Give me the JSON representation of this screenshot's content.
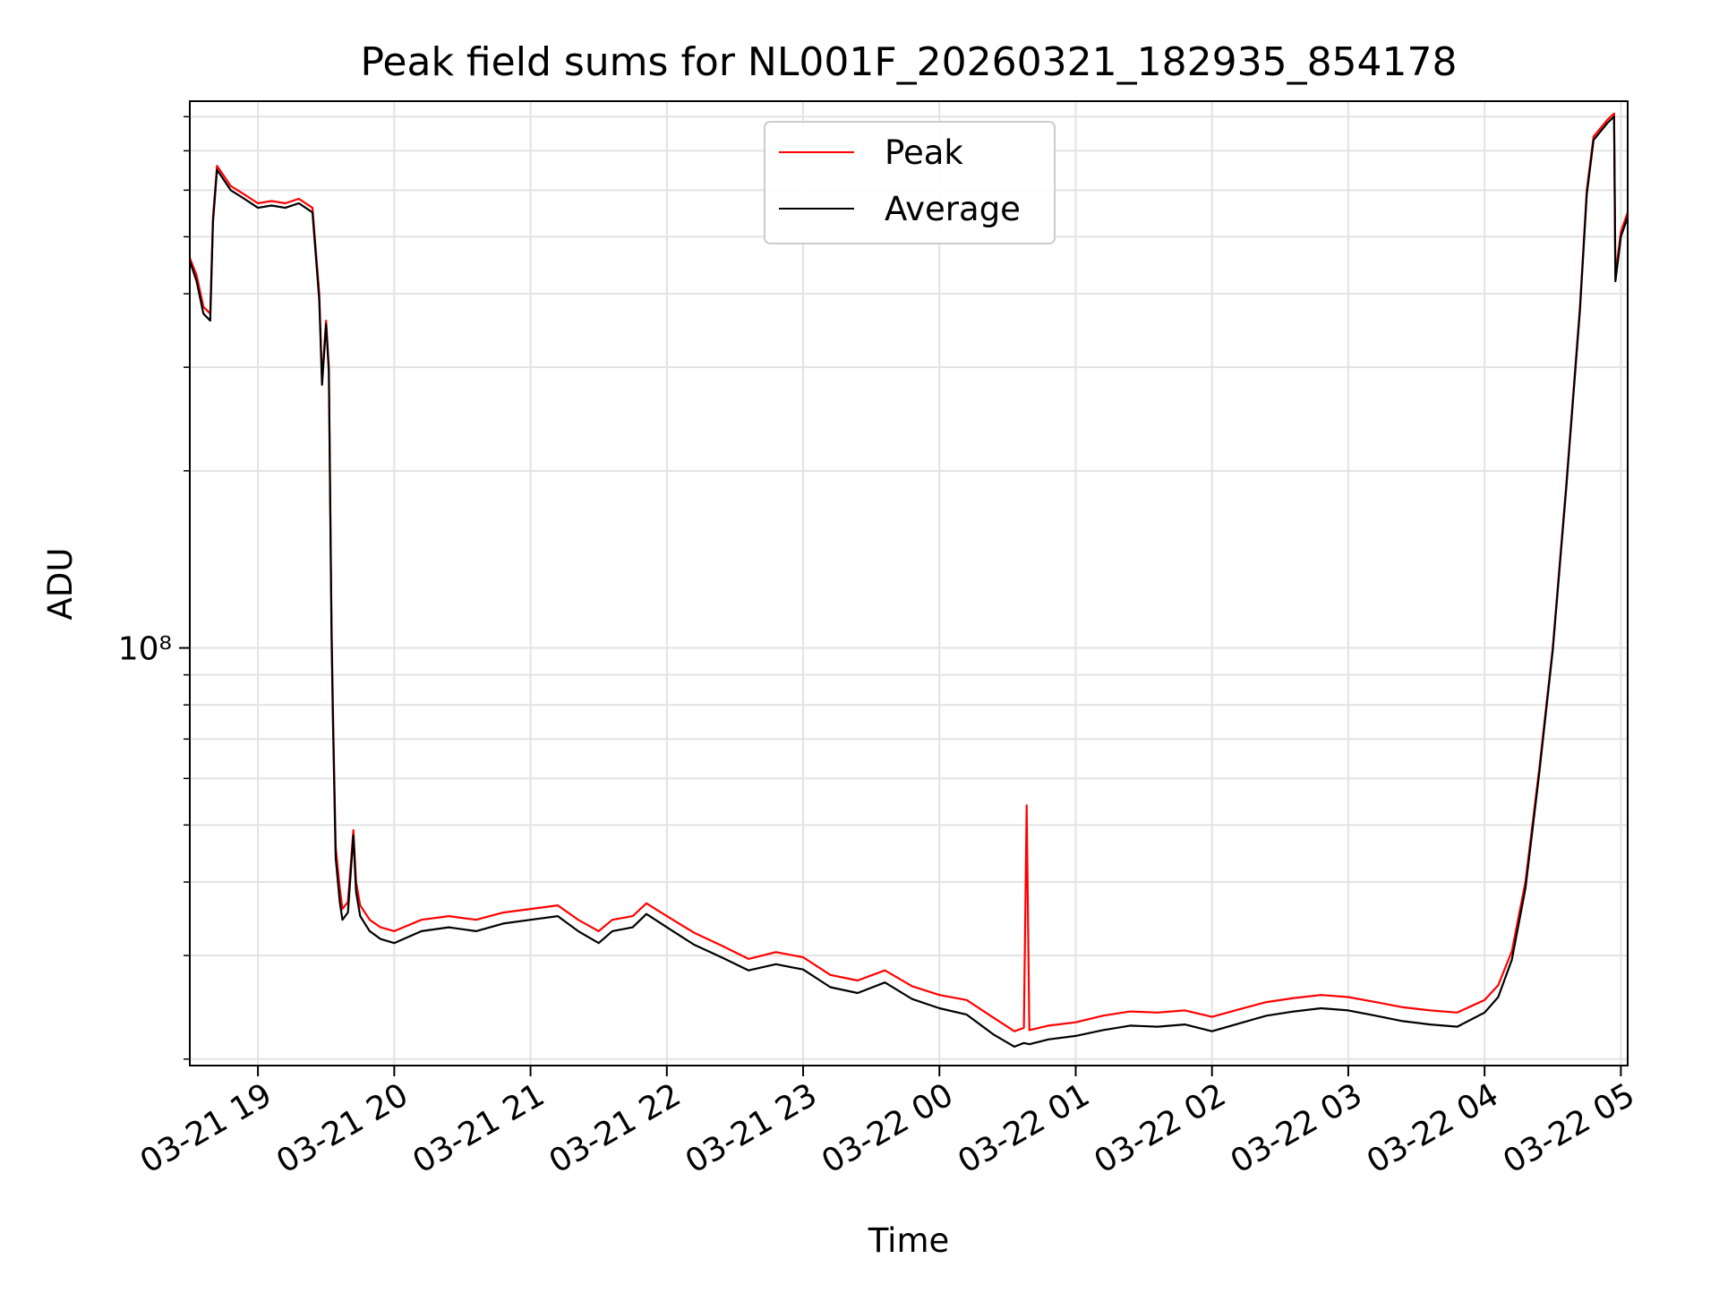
{
  "chart_data": {
    "type": "line",
    "title": "Peak field sums for NL001F_20260321_182935_854178",
    "xlabel": "Time",
    "ylabel": "ADU",
    "y_scale": "log",
    "y_tick_label": "10⁸",
    "y_tick_value": 100000000,
    "ylim": [
      19500000,
      850000000
    ],
    "x_unit": "hours since 03-21 19:00",
    "xlim": [
      -0.5,
      10.05
    ],
    "x_ticks": [
      {
        "label": "03-21 19",
        "value": 0
      },
      {
        "label": "03-21 20",
        "value": 1
      },
      {
        "label": "03-21 21",
        "value": 2
      },
      {
        "label": "03-21 22",
        "value": 3
      },
      {
        "label": "03-21 23",
        "value": 4
      },
      {
        "label": "03-22 00",
        "value": 5
      },
      {
        "label": "03-22 01",
        "value": 6
      },
      {
        "label": "03-22 02",
        "value": 7
      },
      {
        "label": "03-22 03",
        "value": 8
      },
      {
        "label": "03-22 04",
        "value": 9
      },
      {
        "label": "03-22 05",
        "value": 10
      }
    ],
    "grid": true,
    "legend_position": "top-center",
    "series": [
      {
        "name": "Peak",
        "color": "#ff0000",
        "points": [
          [
            -0.5,
            460000000
          ],
          [
            -0.45,
            430000000
          ],
          [
            -0.4,
            380000000
          ],
          [
            -0.35,
            370000000
          ],
          [
            -0.33,
            540000000
          ],
          [
            -0.3,
            660000000
          ],
          [
            -0.2,
            610000000
          ],
          [
            -0.1,
            590000000
          ],
          [
            0.0,
            570000000
          ],
          [
            0.1,
            575000000
          ],
          [
            0.2,
            570000000
          ],
          [
            0.3,
            580000000
          ],
          [
            0.4,
            560000000
          ],
          [
            0.45,
            400000000
          ],
          [
            0.47,
            285000000
          ],
          [
            0.5,
            360000000
          ],
          [
            0.52,
            300000000
          ],
          [
            0.54,
            110000000
          ],
          [
            0.55,
            80000000
          ],
          [
            0.57,
            46000000
          ],
          [
            0.6,
            39000000
          ],
          [
            0.62,
            36000000
          ],
          [
            0.66,
            37000000
          ],
          [
            0.7,
            49000000
          ],
          [
            0.72,
            40000000
          ],
          [
            0.75,
            36500000
          ],
          [
            0.82,
            34500000
          ],
          [
            0.9,
            33500000
          ],
          [
            1.0,
            33000000
          ],
          [
            1.2,
            34500000
          ],
          [
            1.4,
            35000000
          ],
          [
            1.6,
            34500000
          ],
          [
            1.8,
            35500000
          ],
          [
            2.0,
            36000000
          ],
          [
            2.2,
            36500000
          ],
          [
            2.35,
            34500000
          ],
          [
            2.5,
            33000000
          ],
          [
            2.6,
            34500000
          ],
          [
            2.75,
            35000000
          ],
          [
            2.85,
            36800000
          ],
          [
            3.0,
            35000000
          ],
          [
            3.2,
            32800000
          ],
          [
            3.4,
            31200000
          ],
          [
            3.6,
            29600000
          ],
          [
            3.8,
            30400000
          ],
          [
            4.0,
            29800000
          ],
          [
            4.2,
            27800000
          ],
          [
            4.4,
            27200000
          ],
          [
            4.6,
            28300000
          ],
          [
            4.8,
            26600000
          ],
          [
            5.0,
            25700000
          ],
          [
            5.2,
            25200000
          ],
          [
            5.4,
            23500000
          ],
          [
            5.55,
            22300000
          ],
          [
            5.62,
            22600000
          ],
          [
            5.64,
            54000000
          ],
          [
            5.66,
            22400000
          ],
          [
            5.8,
            22800000
          ],
          [
            6.0,
            23100000
          ],
          [
            6.2,
            23700000
          ],
          [
            6.4,
            24100000
          ],
          [
            6.6,
            24000000
          ],
          [
            6.8,
            24200000
          ],
          [
            7.0,
            23600000
          ],
          [
            7.2,
            24300000
          ],
          [
            7.4,
            25000000
          ],
          [
            7.6,
            25400000
          ],
          [
            7.8,
            25700000
          ],
          [
            8.0,
            25500000
          ],
          [
            8.2,
            25000000
          ],
          [
            8.4,
            24500000
          ],
          [
            8.6,
            24200000
          ],
          [
            8.8,
            24000000
          ],
          [
            9.0,
            25200000
          ],
          [
            9.1,
            26700000
          ],
          [
            9.2,
            30500000
          ],
          [
            9.3,
            40000000
          ],
          [
            9.4,
            62000000
          ],
          [
            9.5,
            100000000
          ],
          [
            9.6,
            190000000
          ],
          [
            9.7,
            380000000
          ],
          [
            9.75,
            600000000
          ],
          [
            9.8,
            740000000
          ],
          [
            9.9,
            790000000
          ],
          [
            9.95,
            810000000
          ],
          [
            9.96,
            430000000
          ],
          [
            10.0,
            510000000
          ],
          [
            10.05,
            550000000
          ]
        ]
      },
      {
        "name": "Average",
        "color": "#000000",
        "points": [
          [
            -0.5,
            455000000
          ],
          [
            -0.45,
            420000000
          ],
          [
            -0.4,
            370000000
          ],
          [
            -0.35,
            360000000
          ],
          [
            -0.33,
            530000000
          ],
          [
            -0.3,
            650000000
          ],
          [
            -0.2,
            600000000
          ],
          [
            -0.1,
            580000000
          ],
          [
            0.0,
            560000000
          ],
          [
            0.1,
            565000000
          ],
          [
            0.2,
            560000000
          ],
          [
            0.3,
            570000000
          ],
          [
            0.4,
            550000000
          ],
          [
            0.45,
            390000000
          ],
          [
            0.47,
            280000000
          ],
          [
            0.5,
            355000000
          ],
          [
            0.52,
            295000000
          ],
          [
            0.54,
            105000000
          ],
          [
            0.55,
            76000000
          ],
          [
            0.57,
            44000000
          ],
          [
            0.6,
            37000000
          ],
          [
            0.62,
            34500000
          ],
          [
            0.66,
            35500000
          ],
          [
            0.7,
            48000000
          ],
          [
            0.72,
            38500000
          ],
          [
            0.75,
            35000000
          ],
          [
            0.82,
            33000000
          ],
          [
            0.9,
            32000000
          ],
          [
            1.0,
            31500000
          ],
          [
            1.2,
            33000000
          ],
          [
            1.4,
            33500000
          ],
          [
            1.6,
            33000000
          ],
          [
            1.8,
            34000000
          ],
          [
            2.0,
            34500000
          ],
          [
            2.2,
            35000000
          ],
          [
            2.35,
            33000000
          ],
          [
            2.5,
            31500000
          ],
          [
            2.6,
            33000000
          ],
          [
            2.75,
            33500000
          ],
          [
            2.85,
            35300000
          ],
          [
            3.0,
            33500000
          ],
          [
            3.2,
            31300000
          ],
          [
            3.4,
            29800000
          ],
          [
            3.6,
            28300000
          ],
          [
            3.8,
            29000000
          ],
          [
            4.0,
            28400000
          ],
          [
            4.2,
            26500000
          ],
          [
            4.4,
            25900000
          ],
          [
            4.6,
            27000000
          ],
          [
            4.8,
            25300000
          ],
          [
            5.0,
            24400000
          ],
          [
            5.2,
            23800000
          ],
          [
            5.4,
            22000000
          ],
          [
            5.55,
            21000000
          ],
          [
            5.62,
            21300000
          ],
          [
            5.66,
            21200000
          ],
          [
            5.8,
            21600000
          ],
          [
            6.0,
            21900000
          ],
          [
            6.2,
            22400000
          ],
          [
            6.4,
            22800000
          ],
          [
            6.6,
            22700000
          ],
          [
            6.8,
            22900000
          ],
          [
            7.0,
            22300000
          ],
          [
            7.2,
            23000000
          ],
          [
            7.4,
            23700000
          ],
          [
            7.6,
            24100000
          ],
          [
            7.8,
            24400000
          ],
          [
            8.0,
            24200000
          ],
          [
            8.2,
            23700000
          ],
          [
            8.4,
            23200000
          ],
          [
            8.6,
            22900000
          ],
          [
            8.8,
            22700000
          ],
          [
            9.0,
            24000000
          ],
          [
            9.1,
            25500000
          ],
          [
            9.2,
            29500000
          ],
          [
            9.3,
            39000000
          ],
          [
            9.4,
            61000000
          ],
          [
            9.5,
            99000000
          ],
          [
            9.6,
            188000000
          ],
          [
            9.7,
            375000000
          ],
          [
            9.75,
            590000000
          ],
          [
            9.8,
            730000000
          ],
          [
            9.9,
            780000000
          ],
          [
            9.95,
            800000000
          ],
          [
            9.96,
            420000000
          ],
          [
            10.0,
            500000000
          ],
          [
            10.05,
            540000000
          ]
        ]
      }
    ]
  }
}
